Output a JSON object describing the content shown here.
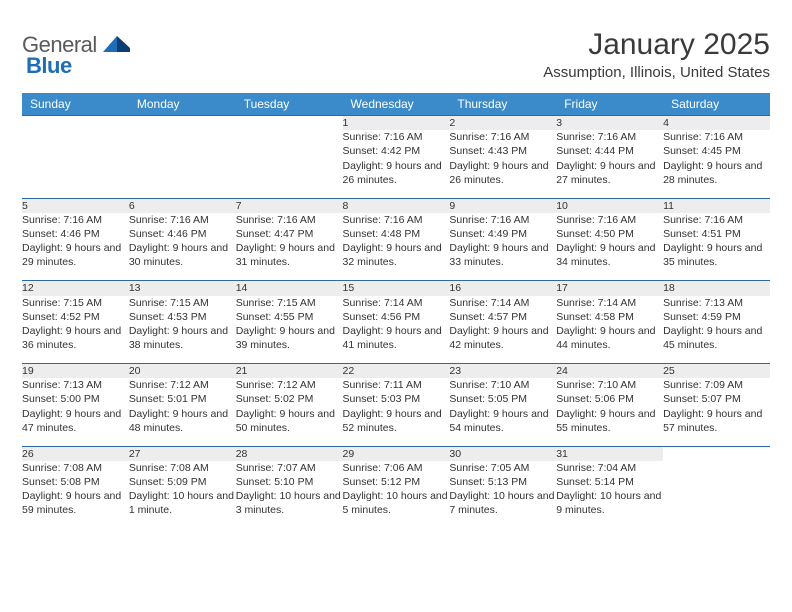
{
  "logo": {
    "word1": "General",
    "word2": "Blue"
  },
  "title": "January 2025",
  "location": "Assumption, Illinois, United States",
  "colors": {
    "header_bg": "#3b8bca",
    "header_text": "#ffffff",
    "daynum_bg": "#ededed",
    "rule": "#2a6aa0",
    "body_text": "#333333",
    "logo_gray": "#5a5a5a",
    "logo_blue": "#1f6db5"
  },
  "weekdays": [
    "Sunday",
    "Monday",
    "Tuesday",
    "Wednesday",
    "Thursday",
    "Friday",
    "Saturday"
  ],
  "weeks": [
    [
      null,
      null,
      null,
      {
        "n": "1",
        "sr": "7:16 AM",
        "ss": "4:42 PM",
        "dl": "9 hours and 26 minutes."
      },
      {
        "n": "2",
        "sr": "7:16 AM",
        "ss": "4:43 PM",
        "dl": "9 hours and 26 minutes."
      },
      {
        "n": "3",
        "sr": "7:16 AM",
        "ss": "4:44 PM",
        "dl": "9 hours and 27 minutes."
      },
      {
        "n": "4",
        "sr": "7:16 AM",
        "ss": "4:45 PM",
        "dl": "9 hours and 28 minutes."
      }
    ],
    [
      {
        "n": "5",
        "sr": "7:16 AM",
        "ss": "4:46 PM",
        "dl": "9 hours and 29 minutes."
      },
      {
        "n": "6",
        "sr": "7:16 AM",
        "ss": "4:46 PM",
        "dl": "9 hours and 30 minutes."
      },
      {
        "n": "7",
        "sr": "7:16 AM",
        "ss": "4:47 PM",
        "dl": "9 hours and 31 minutes."
      },
      {
        "n": "8",
        "sr": "7:16 AM",
        "ss": "4:48 PM",
        "dl": "9 hours and 32 minutes."
      },
      {
        "n": "9",
        "sr": "7:16 AM",
        "ss": "4:49 PM",
        "dl": "9 hours and 33 minutes."
      },
      {
        "n": "10",
        "sr": "7:16 AM",
        "ss": "4:50 PM",
        "dl": "9 hours and 34 minutes."
      },
      {
        "n": "11",
        "sr": "7:16 AM",
        "ss": "4:51 PM",
        "dl": "9 hours and 35 minutes."
      }
    ],
    [
      {
        "n": "12",
        "sr": "7:15 AM",
        "ss": "4:52 PM",
        "dl": "9 hours and 36 minutes."
      },
      {
        "n": "13",
        "sr": "7:15 AM",
        "ss": "4:53 PM",
        "dl": "9 hours and 38 minutes."
      },
      {
        "n": "14",
        "sr": "7:15 AM",
        "ss": "4:55 PM",
        "dl": "9 hours and 39 minutes."
      },
      {
        "n": "15",
        "sr": "7:14 AM",
        "ss": "4:56 PM",
        "dl": "9 hours and 41 minutes."
      },
      {
        "n": "16",
        "sr": "7:14 AM",
        "ss": "4:57 PM",
        "dl": "9 hours and 42 minutes."
      },
      {
        "n": "17",
        "sr": "7:14 AM",
        "ss": "4:58 PM",
        "dl": "9 hours and 44 minutes."
      },
      {
        "n": "18",
        "sr": "7:13 AM",
        "ss": "4:59 PM",
        "dl": "9 hours and 45 minutes."
      }
    ],
    [
      {
        "n": "19",
        "sr": "7:13 AM",
        "ss": "5:00 PM",
        "dl": "9 hours and 47 minutes."
      },
      {
        "n": "20",
        "sr": "7:12 AM",
        "ss": "5:01 PM",
        "dl": "9 hours and 48 minutes."
      },
      {
        "n": "21",
        "sr": "7:12 AM",
        "ss": "5:02 PM",
        "dl": "9 hours and 50 minutes."
      },
      {
        "n": "22",
        "sr": "7:11 AM",
        "ss": "5:03 PM",
        "dl": "9 hours and 52 minutes."
      },
      {
        "n": "23",
        "sr": "7:10 AM",
        "ss": "5:05 PM",
        "dl": "9 hours and 54 minutes."
      },
      {
        "n": "24",
        "sr": "7:10 AM",
        "ss": "5:06 PM",
        "dl": "9 hours and 55 minutes."
      },
      {
        "n": "25",
        "sr": "7:09 AM",
        "ss": "5:07 PM",
        "dl": "9 hours and 57 minutes."
      }
    ],
    [
      {
        "n": "26",
        "sr": "7:08 AM",
        "ss": "5:08 PM",
        "dl": "9 hours and 59 minutes."
      },
      {
        "n": "27",
        "sr": "7:08 AM",
        "ss": "5:09 PM",
        "dl": "10 hours and 1 minute."
      },
      {
        "n": "28",
        "sr": "7:07 AM",
        "ss": "5:10 PM",
        "dl": "10 hours and 3 minutes."
      },
      {
        "n": "29",
        "sr": "7:06 AM",
        "ss": "5:12 PM",
        "dl": "10 hours and 5 minutes."
      },
      {
        "n": "30",
        "sr": "7:05 AM",
        "ss": "5:13 PM",
        "dl": "10 hours and 7 minutes."
      },
      {
        "n": "31",
        "sr": "7:04 AM",
        "ss": "5:14 PM",
        "dl": "10 hours and 9 minutes."
      },
      null
    ]
  ],
  "labels": {
    "sunrise": "Sunrise: ",
    "sunset": "Sunset: ",
    "daylight": "Daylight: "
  }
}
